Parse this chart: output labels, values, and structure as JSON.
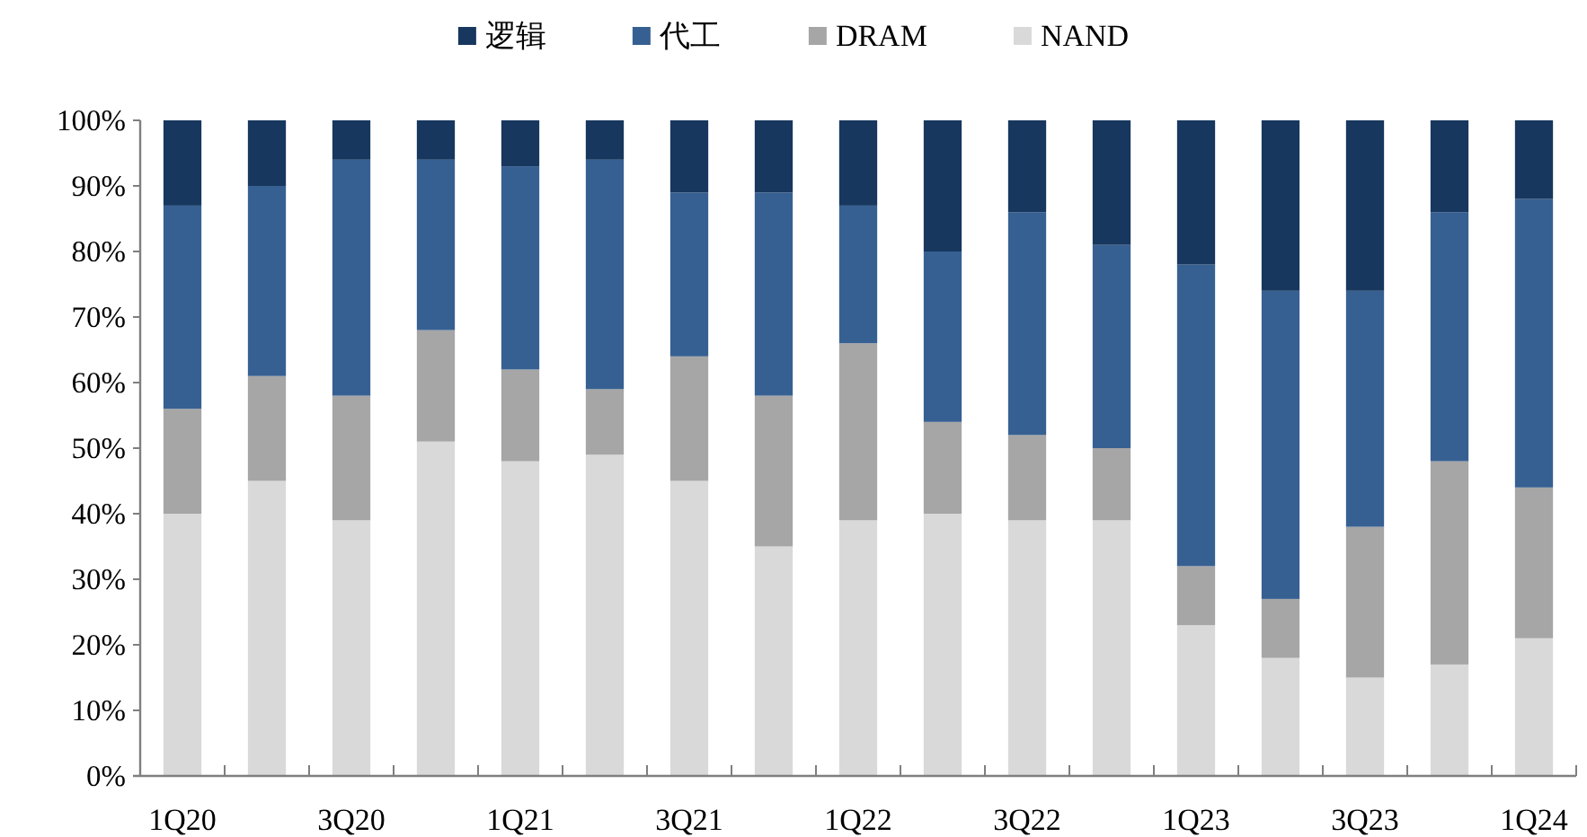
{
  "chart_data": {
    "type": "bar",
    "stacked": true,
    "legend": "top",
    "categories": [
      "1Q20",
      null,
      "3Q20",
      null,
      "1Q21",
      null,
      "3Q21",
      null,
      "1Q22",
      null,
      "3Q22",
      null,
      "1Q23",
      null,
      "3Q23",
      null,
      "1Q24"
    ],
    "series": [
      {
        "name": "NAND",
        "color": "#d9d9d9",
        "values": [
          40,
          45,
          39,
          51,
          48,
          49,
          45,
          35,
          39,
          40,
          39,
          39,
          23,
          18,
          15,
          17,
          21
        ]
      },
      {
        "name": "DRAM",
        "color": "#a6a6a6",
        "values": [
          16,
          16,
          19,
          17,
          14,
          10,
          19,
          23,
          27,
          14,
          13,
          11,
          9,
          9,
          23,
          31,
          23
        ]
      },
      {
        "name": "代工",
        "color": "#376092",
        "values": [
          31,
          29,
          36,
          26,
          31,
          35,
          25,
          31,
          21,
          26,
          34,
          31,
          46,
          47,
          36,
          38,
          44
        ]
      },
      {
        "name": "逻辑",
        "color": "#17375e",
        "values": [
          13,
          10,
          6,
          6,
          7,
          6,
          11,
          11,
          13,
          20,
          14,
          19,
          22,
          26,
          26,
          14,
          12
        ]
      }
    ],
    "ylim": [
      0,
      100
    ],
    "yticks": [
      {
        "value": 0,
        "label": "0%"
      },
      {
        "value": 10,
        "label": "10%"
      },
      {
        "value": 20,
        "label": "20%"
      },
      {
        "value": 30,
        "label": "30%"
      },
      {
        "value": 40,
        "label": "40%"
      },
      {
        "value": 50,
        "label": "50%"
      },
      {
        "value": 60,
        "label": "60%"
      },
      {
        "value": 70,
        "label": "70%"
      },
      {
        "value": 80,
        "label": "80%"
      },
      {
        "value": 90,
        "label": "90%"
      },
      {
        "value": 100,
        "label": "100%"
      }
    ]
  }
}
